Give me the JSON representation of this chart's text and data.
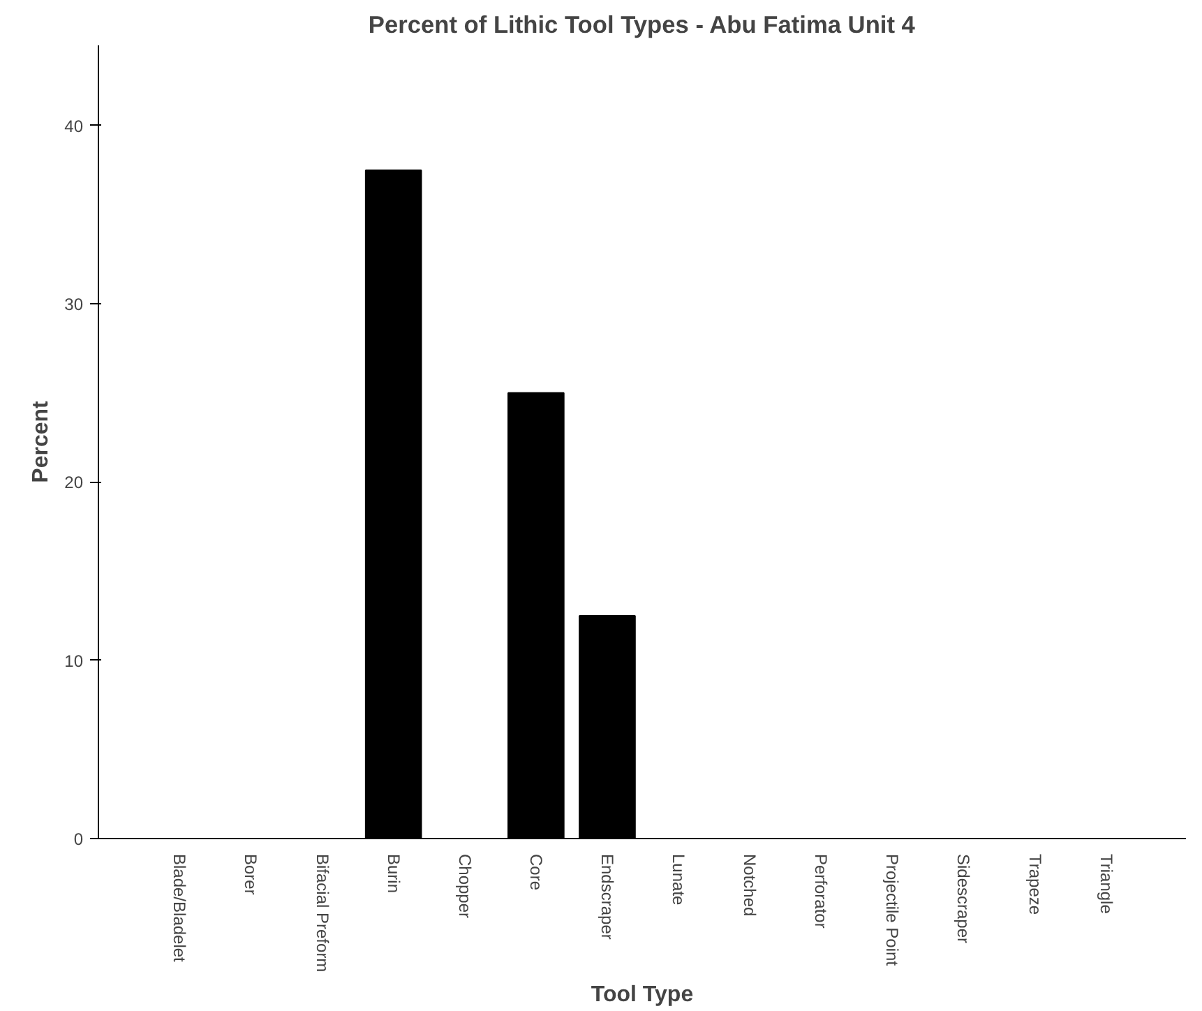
{
  "chart_data": {
    "type": "bar",
    "title": "Percent of Lithic Tool Types - Abu Fatima Unit 4",
    "xlabel": "Tool Type",
    "ylabel": "Percent",
    "categories": [
      "Blade/Bladelet",
      "Borer",
      "Bifacial Preform",
      "Burin",
      "Chopper",
      "Core",
      "Endscraper",
      "Lunate",
      "Notched",
      "Perforator",
      "Projectile Point",
      "Sidescraper",
      "Trapeze",
      "Triangle"
    ],
    "values": [
      0,
      0,
      0,
      37.5,
      0,
      25,
      12.5,
      0,
      0,
      0,
      0,
      0,
      0,
      0
    ],
    "color": "#000000",
    "ylim": [
      0,
      44.5
    ],
    "yticks": [
      0,
      10,
      20,
      30,
      40
    ],
    "grid": false
  }
}
